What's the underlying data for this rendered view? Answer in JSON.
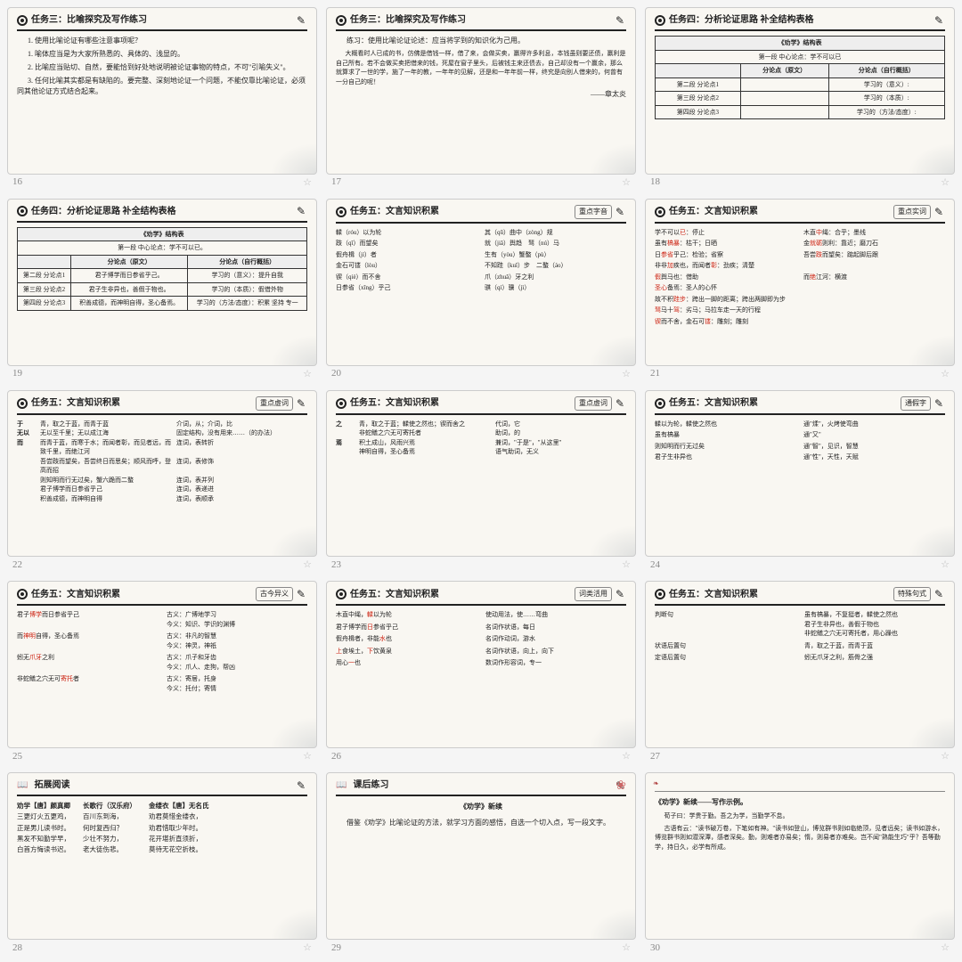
{
  "slides": [
    {
      "num": "16",
      "title": "任务三：比喻探究及写作练习",
      "lines": [
        "1. 使用比喻论证有哪些注意事项呢？",
        "1. 喻体应当是为大家所熟悉的、具体的、浅显的。",
        "2. 比喻应当贴切、自然，要能恰到好处地说明被论证事物的特点，不可\"引喻失义\"。",
        "3. 任何比喻其实都是有缺陷的。要完整、深刻地论证一个问题，不能仅靠比喻论证，必须同其他论证方式结合起来。"
      ]
    },
    {
      "num": "17",
      "title": "任务三：比喻探究及写作练习",
      "lead": "练习：使用比喻论证论述：应当将学到的知识化为己用。",
      "para": "大概看时人已成的书，仿佛是借钱一样，借了来，会做买卖，赢得许多利息，本钱虽则要还债，赢利是自己所有。若不会做买卖把借来的钱，死屋在窗子里头，后被钱主来还债去，自己却没有一个赢余，那么就算求了一世的学，施了一年的教，一年年的见解，还是和一年年前一样，终究是向别人借来的，何曾有一分自己的呢！",
      "sig": "——章太炎"
    },
    {
      "num": "18",
      "title": "任务四：分析论证思路 补全结构表格",
      "table_title": "《劝学》结构表",
      "center": "第一段 中心论点：学不可以已",
      "cols": [
        "",
        "分论点（原文）",
        "分论点（自行概括）"
      ],
      "rows": [
        [
          "第二段 分论点1",
          "",
          "学习的（意义）:"
        ],
        [
          "第三段 分论点2",
          "",
          "学习的（本质）:"
        ],
        [
          "第四段 分论点3",
          "",
          "学习的（方法/态度）:"
        ]
      ]
    },
    {
      "num": "19",
      "title": "任务四：分析论证思路 补全结构表格",
      "table_title": "《劝学》结构表",
      "center": "第一段 中心论点：学不可以已。",
      "cols": [
        "",
        "分论点（原文）",
        "分论点（自行概括）"
      ],
      "rows": [
        [
          "第二段 分论点1",
          "君子博学而日参省乎己。",
          "学习的（意义）：提升自我"
        ],
        [
          "第三段 分论点2",
          "君子生非异也，善假于物也。",
          "学习的（本质）：假借外物"
        ],
        [
          "第四段 分论点3",
          "积善成德，而神明自得，圣心备焉。",
          "学习的（方法/态度）：积累 坚持 专一"
        ]
      ]
    },
    {
      "num": "20",
      "title": "任务五：文言知识积累",
      "badge": "重点字音",
      "two_col": [
        [
          "輮（róu）以为轮",
          "其（qū）曲中（zòng）规"
        ],
        [
          "跂（qǐ）而望矣",
          "就（jiǎ）舆趋　驽（nú）马"
        ],
        [
          "假舟楫（jí）者",
          "生有（yòu）蟹螯（pù）"
        ],
        [
          "金石可镂（lòu）",
          "不知跬（kuǐ）步　二螯（áo）"
        ],
        [
          "锲（qiè）而不舍",
          "爪（zhuǎ）牙之利"
        ],
        [
          "日参省（xǐng）乎己",
          "骐（qí）骥（jì）"
        ]
      ]
    },
    {
      "num": "21",
      "title": "任务五：文言知识积累",
      "badge": "重点实词",
      "two_col": [
        [
          "学不可以<span class='red'>已</span>：停止",
          "木直<span class='red'>中</span>绳：合乎；墨线"
        ],
        [
          "虽有<span class='red'>槁暴</span>：枯干；日晒",
          "金<span class='red'>就砺</span>则利：靠近；磨刀石"
        ],
        [
          "日<span class='red'>参省</span>乎己：检验；省察",
          "吾尝<span class='red'>跂</span>而望矣：踮起脚后跟"
        ],
        [
          "非非<span class='red'>加</span>疾也，而闻者<span class='red'>彰</span>：劲疾；清楚",
          ""
        ],
        [
          "<span class='red'>假</span>舆马也：借助",
          "而<span class='red'>绝</span>江河：横渡"
        ],
        [
          "<span class='red'>圣心</span>备焉：圣人的心怀",
          ""
        ],
        [
          "故不积<span class='red'>跬步</span>：跨出一脚的距离；跨出两脚即为步",
          ""
        ],
        [
          "<span class='red'>驽</span>马十<span class='red'>驾</span>：劣马；马拉车走一天的行程",
          ""
        ],
        [
          "<span class='red'>锲</span>而不舍，金石可<span class='red'>镂</span>：雕刻；雕刻",
          ""
        ]
      ]
    },
    {
      "num": "22",
      "title": "任务五：文言知识积累",
      "badge": "重点虚词",
      "rows3": [
        [
          "于",
          "青，取之于蓝，而青于蓝",
          "介词，从；介词，比"
        ],
        [
          "无以",
          "无以至千里；无以成江海",
          "固定结构，没有用来……（的办法）"
        ],
        [
          "而",
          "而青于蓝，而寒于水；而闻者彰，而见者远，而致千里，而绝江河",
          "连词，表转折"
        ],
        [
          "",
          "吾尝跂而望矣，吾尝终日而思矣；顺风而呼，登高而招",
          "连词，表修饰"
        ],
        [
          "",
          "则知明而行无过矣，蟹六跪而二螯",
          "连词，表并列"
        ],
        [
          "",
          "君子博学而日参省乎己",
          "连词，表递进"
        ],
        [
          "",
          "积善成德，而神明自得",
          "连词，表顺承"
        ]
      ]
    },
    {
      "num": "23",
      "title": "任务五：文言知识积累",
      "badge": "重点虚词",
      "rows3": [
        [
          "之",
          "青，取之于蓝；輮使之然也；锲而舍之",
          "代词，它"
        ],
        [
          "",
          "非蛇鳝之穴无可寄托者",
          "助词，的"
        ],
        [
          "焉",
          "积土成山，风雨兴焉",
          "兼词，\"于是\"，\"从这里\""
        ],
        [
          "",
          "神明自得，圣心备焉",
          "语气助词，无义"
        ]
      ]
    },
    {
      "num": "24",
      "title": "任务五：文言知识积累",
      "badge": "通假字",
      "two_col": [
        [
          "輮以为轮，輮使之然也",
          "通\"煣\"，火烤使弯曲"
        ],
        [
          "虽有槁暴",
          "通\"又\""
        ],
        [
          "则知明而行无过矣",
          "通\"智\"，见识，智慧"
        ],
        [
          "君子生非异也",
          "通\"性\"，天性，天赋"
        ]
      ]
    },
    {
      "num": "25",
      "title": "任务五：文言知识积累",
      "badge": "古今异义",
      "pairs": [
        [
          "君子<span class='red'>博学</span>而日参省乎己",
          "古义：广博地学习<br>今义：知识、学识的渊博"
        ],
        [
          "而<span class='red'>神明</span>自得，圣心备焉",
          "古义：非凡的智慧<br>今义：神灵，神祇"
        ],
        [
          "蚓无<span class='red'>爪牙</span>之利",
          "古义：爪子和牙齿<br>今义：爪人、走狗，帮凶"
        ],
        [
          "非蛇鳝之穴无可<span class='red'>寄托</span>者",
          "古义：寄居，托身<br>今义：托付；寄情"
        ]
      ]
    },
    {
      "num": "26",
      "title": "任务五：文言知识积累",
      "badge": "词类活用",
      "pairs": [
        [
          "木直中绳，<span class='red'>輮</span>以为轮",
          "使动用法，使……弯曲"
        ],
        [
          "君子博学而<span class='red'>日</span>参省乎己",
          "名词作状语，每日"
        ],
        [
          "假舟楫者，非能<span class='red'>水</span>也",
          "名词作动词，游水"
        ],
        [
          "<span class='red'>上</span>食埃土，<span class='red'>下</span>饮黄泉",
          "名词作状语，向上，向下"
        ],
        [
          "用心<span class='red'>一</span>也",
          "数词作形容词，专一"
        ]
      ]
    },
    {
      "num": "27",
      "title": "任务五：文言知识积累",
      "badge": "特殊句式",
      "pairs": [
        [
          "判断句",
          "虽有槁暴，不复挺者，輮使之然也<br>君子生非异也，善假于物也<br>非蛇鳝之穴无可寄托者，用心躁也"
        ],
        [
          "状语后置句",
          "青，取之于蓝，而青于蓝"
        ],
        [
          "定语后置句",
          "蚓无爪牙之利，筋骨之强"
        ]
      ]
    },
    {
      "num": "28",
      "title": "拓展阅读",
      "icon": "book",
      "poems": [
        {
          "t": "劝学【唐】颜真卿",
          "lines": [
            "三更灯火五更鸡，",
            "正是男儿读书时。",
            "黑发不知勤学早，",
            "白首方悔读书迟。"
          ]
        },
        {
          "t": "长歌行（汉乐府）",
          "lines": [
            "百川东到海，",
            "何时复西归？",
            "少壮不努力，",
            "老大徒伤悲。"
          ]
        },
        {
          "t": "金缕衣【唐】无名氏",
          "lines": [
            "劝君莫惜金缕衣，",
            "劝君惜取少年时。",
            "花开堪折直须折，",
            "莫待无花空折枝。"
          ]
        }
      ]
    },
    {
      "num": "29",
      "title": "课后练习",
      "icon": "book",
      "heading": "《劝学》新续",
      "para": "借鉴《劝学》比喻论证的方法，就学习方面的感悟，自选一个切入点，写一段文字。"
    },
    {
      "num": "30",
      "heading": "《劝学》新续——写作示例。",
      "lines": [
        "荀子曰：学贵于勤。吾之为学，当勤学不怠。",
        "古语有云：\"读书破万卷，下笔如有神。\"读书如登山，博览群书则如临绝顶，见者远矣；读书如游水，博览群书则如潜深潭，感者深矣。勤，则难者亦易矣；惰，则易者亦难矣。岂不闻\"熟能生巧\"乎？吾等勤学，持日久，必学有所成。"
      ]
    }
  ]
}
